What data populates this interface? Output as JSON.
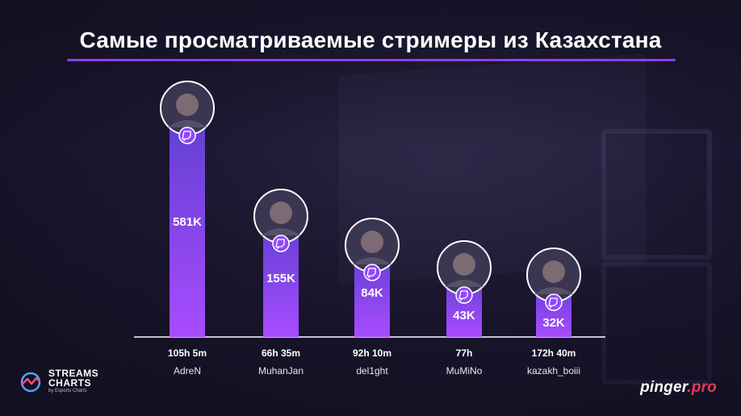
{
  "title": "Самые просматриваемые стримеры из Казахстана",
  "colors": {
    "bar_top": "#6b3fd6",
    "bar_bottom": "#a64cff",
    "accent": "#8f3fe8",
    "twitch": "#9146ff"
  },
  "chart_data": {
    "type": "bar",
    "categories": [
      "AdreN",
      "MuhanJan",
      "del1ght",
      "MuMiNo",
      "kazakh_boiii"
    ],
    "values": [
      581000,
      155000,
      84000,
      43000,
      32000
    ],
    "value_labels": [
      "581K",
      "155K",
      "84K",
      "43K",
      "32K"
    ],
    "hours_streamed": [
      "105h 5m",
      "66h 35m",
      "92h 10m",
      "77h",
      "172h 40m"
    ],
    "platform_icon": "twitch-icon",
    "title": "Самые просматриваемые стримеры из Казахстана",
    "xlabel": "",
    "ylabel": "",
    "grid": false,
    "legend": "none"
  },
  "branding": {
    "streams_charts_line1": "STREAMS",
    "streams_charts_line2": "CHARTS",
    "streams_charts_line3": "by Esports Charts",
    "pinger_main": "pinger",
    "pinger_dot": ".",
    "pinger_suffix": "pro"
  }
}
